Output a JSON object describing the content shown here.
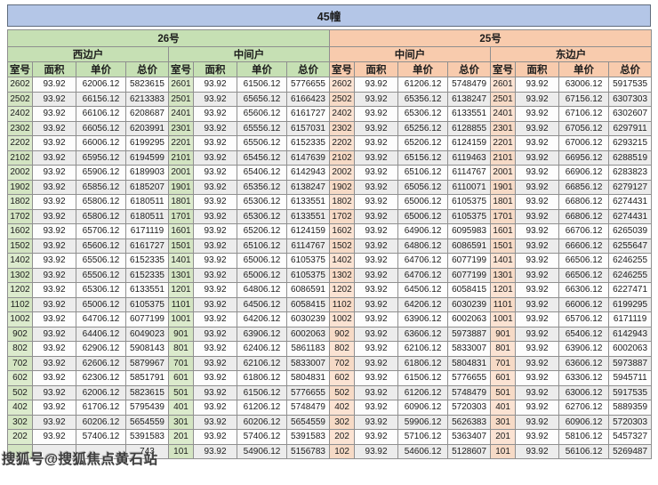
{
  "title": "45幢",
  "watermark": "搜狐号@搜狐焦点黄石站",
  "colors": {
    "title_bg": "#b4c6e7",
    "section26_bg": "#c6e0b4",
    "section25_bg": "#f8cbad",
    "room_cell_green": "#dcebcd",
    "room_cell_orange": "#fbe3d3"
  },
  "table": {
    "sections": [
      {
        "name": "26号",
        "units": [
          "西边户",
          "中间户"
        ]
      },
      {
        "name": "25号",
        "units": [
          "中间户",
          "东边户"
        ]
      }
    ],
    "col_headers": [
      "室号",
      "面积",
      "单价",
      "总价"
    ],
    "rows": [
      [
        "2602",
        "93.92",
        "62006.12",
        "5823615",
        "2601",
        "93.92",
        "61506.12",
        "5776655",
        "2602",
        "93.92",
        "61206.12",
        "5748479",
        "2601",
        "93.92",
        "63006.12",
        "5917535"
      ],
      [
        "2502",
        "93.92",
        "66156.12",
        "6213383",
        "2501",
        "93.92",
        "65656.12",
        "6166423",
        "2502",
        "93.92",
        "65356.12",
        "6138247",
        "2501",
        "93.92",
        "67156.12",
        "6307303"
      ],
      [
        "2402",
        "93.92",
        "66106.12",
        "6208687",
        "2401",
        "93.92",
        "65606.12",
        "6161727",
        "2402",
        "93.92",
        "65306.12",
        "6133551",
        "2401",
        "93.92",
        "67106.12",
        "6302607"
      ],
      [
        "2302",
        "93.92",
        "66056.12",
        "6203991",
        "2301",
        "93.92",
        "65556.12",
        "6157031",
        "2302",
        "93.92",
        "65256.12",
        "6128855",
        "2301",
        "93.92",
        "67056.12",
        "6297911"
      ],
      [
        "2202",
        "93.92",
        "66006.12",
        "6199295",
        "2201",
        "93.92",
        "65506.12",
        "6152335",
        "2202",
        "93.92",
        "65206.12",
        "6124159",
        "2201",
        "93.92",
        "67006.12",
        "6293215"
      ],
      [
        "2102",
        "93.92",
        "65956.12",
        "6194599",
        "2101",
        "93.92",
        "65456.12",
        "6147639",
        "2102",
        "93.92",
        "65156.12",
        "6119463",
        "2101",
        "93.92",
        "66956.12",
        "6288519"
      ],
      [
        "2002",
        "93.92",
        "65906.12",
        "6189903",
        "2001",
        "93.92",
        "65406.12",
        "6142943",
        "2002",
        "93.92",
        "65106.12",
        "6114767",
        "2001",
        "93.92",
        "66906.12",
        "6283823"
      ],
      [
        "1902",
        "93.92",
        "65856.12",
        "6185207",
        "1901",
        "93.92",
        "65356.12",
        "6138247",
        "1902",
        "93.92",
        "65056.12",
        "6110071",
        "1901",
        "93.92",
        "66856.12",
        "6279127"
      ],
      [
        "1802",
        "93.92",
        "65806.12",
        "6180511",
        "1801",
        "93.92",
        "65306.12",
        "6133551",
        "1802",
        "93.92",
        "65006.12",
        "6105375",
        "1801",
        "93.92",
        "66806.12",
        "6274431"
      ],
      [
        "1702",
        "93.92",
        "65806.12",
        "6180511",
        "1701",
        "93.92",
        "65306.12",
        "6133551",
        "1702",
        "93.92",
        "65006.12",
        "6105375",
        "1701",
        "93.92",
        "66806.12",
        "6274431"
      ],
      [
        "1602",
        "93.92",
        "65706.12",
        "6171119",
        "1601",
        "93.92",
        "65206.12",
        "6124159",
        "1602",
        "93.92",
        "64906.12",
        "6095983",
        "1601",
        "93.92",
        "66706.12",
        "6265039"
      ],
      [
        "1502",
        "93.92",
        "65606.12",
        "6161727",
        "1501",
        "93.92",
        "65106.12",
        "6114767",
        "1502",
        "93.92",
        "64806.12",
        "6086591",
        "1501",
        "93.92",
        "66606.12",
        "6255647"
      ],
      [
        "1402",
        "93.92",
        "65506.12",
        "6152335",
        "1401",
        "93.92",
        "65006.12",
        "6105375",
        "1402",
        "93.92",
        "64706.12",
        "6077199",
        "1401",
        "93.92",
        "66506.12",
        "6246255"
      ],
      [
        "1302",
        "93.92",
        "65506.12",
        "6152335",
        "1301",
        "93.92",
        "65006.12",
        "6105375",
        "1302",
        "93.92",
        "64706.12",
        "6077199",
        "1301",
        "93.92",
        "66506.12",
        "6246255"
      ],
      [
        "1202",
        "93.92",
        "65306.12",
        "6133551",
        "1201",
        "93.92",
        "64806.12",
        "6086591",
        "1202",
        "93.92",
        "64506.12",
        "6058415",
        "1201",
        "93.92",
        "66306.12",
        "6227471"
      ],
      [
        "1102",
        "93.92",
        "65006.12",
        "6105375",
        "1101",
        "93.92",
        "64506.12",
        "6058415",
        "1102",
        "93.92",
        "64206.12",
        "6030239",
        "1101",
        "93.92",
        "66006.12",
        "6199295"
      ],
      [
        "1002",
        "93.92",
        "64706.12",
        "6077199",
        "1001",
        "93.92",
        "64206.12",
        "6030239",
        "1002",
        "93.92",
        "63906.12",
        "6002063",
        "1001",
        "93.92",
        "65706.12",
        "6171119"
      ],
      [
        "902",
        "93.92",
        "64406.12",
        "6049023",
        "901",
        "93.92",
        "63906.12",
        "6002063",
        "902",
        "93.92",
        "63606.12",
        "5973887",
        "901",
        "93.92",
        "65406.12",
        "6142943"
      ],
      [
        "802",
        "93.92",
        "62906.12",
        "5908143",
        "801",
        "93.92",
        "62406.12",
        "5861183",
        "802",
        "93.92",
        "62106.12",
        "5833007",
        "801",
        "93.92",
        "63906.12",
        "6002063"
      ],
      [
        "702",
        "93.92",
        "62606.12",
        "5879967",
        "701",
        "93.92",
        "62106.12",
        "5833007",
        "702",
        "93.92",
        "61806.12",
        "5804831",
        "701",
        "93.92",
        "63606.12",
        "5973887"
      ],
      [
        "602",
        "93.92",
        "62306.12",
        "5851791",
        "601",
        "93.92",
        "61806.12",
        "5804831",
        "602",
        "93.92",
        "61506.12",
        "5776655",
        "601",
        "93.92",
        "63306.12",
        "5945711"
      ],
      [
        "502",
        "93.92",
        "62006.12",
        "5823615",
        "501",
        "93.92",
        "61506.12",
        "5776655",
        "502",
        "93.92",
        "61206.12",
        "5748479",
        "501",
        "93.92",
        "63006.12",
        "5917535"
      ],
      [
        "402",
        "93.92",
        "61706.12",
        "5795439",
        "401",
        "93.92",
        "61206.12",
        "5748479",
        "402",
        "93.92",
        "60906.12",
        "5720303",
        "401",
        "93.92",
        "62706.12",
        "5889359"
      ],
      [
        "302",
        "93.92",
        "60206.12",
        "5654559",
        "301",
        "93.92",
        "60206.12",
        "5654559",
        "302",
        "93.92",
        "59906.12",
        "5626383",
        "301",
        "93.92",
        "60906.12",
        "5720303"
      ],
      [
        "202",
        "93.92",
        "57406.12",
        "5391583",
        "201",
        "93.92",
        "57406.12",
        "5391583",
        "202",
        "93.92",
        "57106.12",
        "5363407",
        "201",
        "93.92",
        "58106.12",
        "5457327"
      ],
      [
        "",
        "",
        "",
        "743",
        "101",
        "93.92",
        "54906.12",
        "5156783",
        "102",
        "93.92",
        "54606.12",
        "5128607",
        "101",
        "93.92",
        "56106.12",
        "5269487"
      ]
    ]
  }
}
